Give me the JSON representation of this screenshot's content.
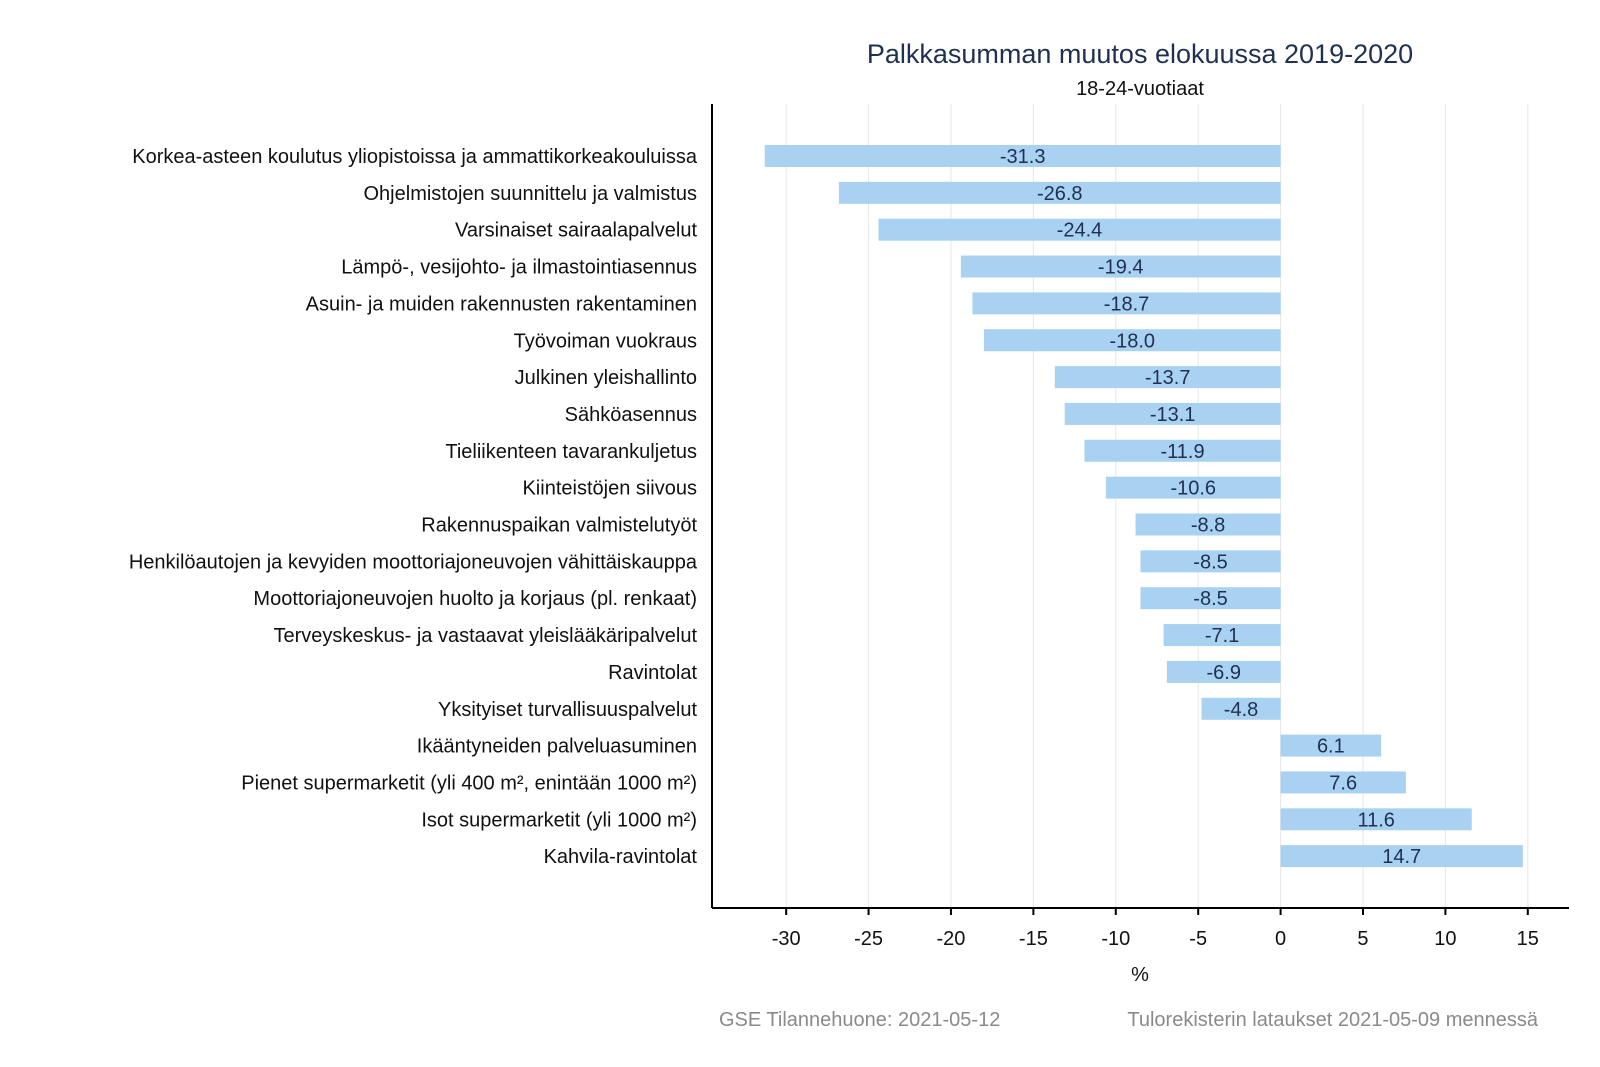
{
  "chart_data": {
    "type": "bar",
    "orientation": "horizontal",
    "title": "Palkkasumman muutos elokuussa 2019-2020",
    "subtitle": "18-24-vuotiaat",
    "xlabel": "%",
    "ylabel": "",
    "xlim": [
      -34.5,
      17.5
    ],
    "xticks": [
      -30,
      -25,
      -20,
      -15,
      -10,
      -5,
      0,
      5,
      10,
      15
    ],
    "grid": true,
    "bar_color": "#a9d2f2",
    "categories": [
      "Korkea-asteen koulutus yliopistoissa ja ammattikorkeakouluissa",
      "Ohjelmistojen suunnittelu ja valmistus",
      "Varsinaiset sairaalapalvelut",
      "Lämpö-, vesijohto- ja ilmastointiasennus",
      "Asuin- ja muiden rakennusten rakentaminen",
      "Työvoiman vuokraus",
      "Julkinen yleishallinto",
      "Sähköasennus",
      "Tieliikenteen tavarankuljetus",
      "Kiinteistöjen siivous",
      "Rakennuspaikan valmistelutyöt",
      "Henkilöautojen ja kevyiden moottoriajoneuvojen vähittäiskauppa",
      "Moottoriajoneuvojen huolto ja korjaus (pl. renkaat)",
      "Terveyskeskus- ja vastaavat yleislääkäripalvelut",
      "Ravintolat",
      "Yksityiset turvallisuuspalvelut",
      "Ikääntyneiden palveluasuminen",
      "Pienet supermarketit (yli 400 m², enintään 1000 m²)",
      "Isot supermarketit (yli 1000 m²)",
      "Kahvila-ravintolat"
    ],
    "values": [
      -31.3,
      -26.8,
      -24.4,
      -19.4,
      -18.7,
      -18.0,
      -13.7,
      -13.1,
      -11.9,
      -10.6,
      -8.8,
      -8.5,
      -8.5,
      -7.1,
      -6.9,
      -4.8,
      6.1,
      7.6,
      11.6,
      14.7
    ],
    "value_labels": [
      "-31.3",
      "-26.8",
      "-24.4",
      "-19.4",
      "-18.7",
      "-18.0",
      "-13.7",
      "-13.1",
      "-11.9",
      "-10.6",
      "-8.8",
      "-8.5",
      "-8.5",
      "-7.1",
      "-6.9",
      "-4.8",
      "6.1",
      "7.6",
      "11.6",
      "14.7"
    ]
  },
  "footer": {
    "source": "GSE Tilannehuone: 2021-05-12",
    "note": "Tulorekisterin lataukset 2021-05-09 mennessä"
  }
}
